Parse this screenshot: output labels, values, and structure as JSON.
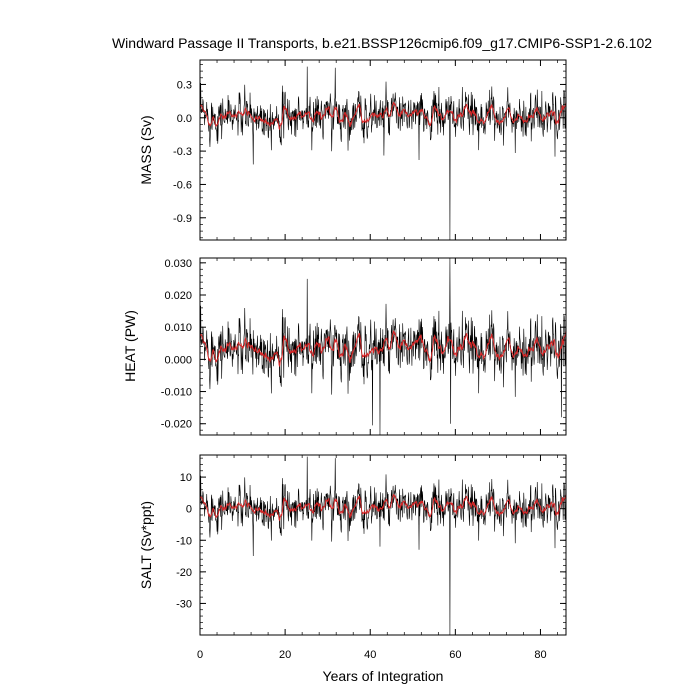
{
  "chart_data": {
    "type": "line",
    "title": "Windward Passage II Transports, b.e21.BSSP126cmip6.f09_g17.CMIP6-SSP1-2.6.102",
    "xlabel": "Years of Integration",
    "xlim": [
      0,
      86
    ],
    "xticks": [
      0,
      20,
      40,
      60,
      80
    ],
    "grid": false,
    "colors": {
      "raw": "#000000",
      "smooth": "#d62728"
    },
    "panels": [
      {
        "name": "mass",
        "ylabel": "MASS (Sv)",
        "ylim": [
          -1.1,
          0.52
        ],
        "yticks": [
          0.3,
          0.0,
          -0.3,
          -0.6,
          -0.9
        ],
        "ytick_labels": [
          "0.3",
          "0.0",
          "-0.3",
          "-0.6",
          "-0.9"
        ],
        "noise_mean": 0.02,
        "noise_sd": 0.1,
        "spikes": [
          [
            25.2,
            0.46
          ],
          [
            31.8,
            0.45
          ],
          [
            12.5,
            -0.42
          ],
          [
            43.2,
            -0.34
          ],
          [
            51.5,
            -0.38
          ],
          [
            58.7,
            -1.1
          ],
          [
            83.4,
            -0.35
          ]
        ]
      },
      {
        "name": "heat",
        "ylabel": "HEAT (PW)",
        "ylim": [
          -0.0235,
          0.0315
        ],
        "yticks": [
          0.03,
          0.02,
          0.01,
          0.0,
          -0.01,
          -0.02
        ],
        "ytick_labels": [
          "0.030",
          "0.020",
          "0.010",
          "0.000",
          "-0.010",
          "-0.020"
        ],
        "noise_mean": 0.0035,
        "noise_sd": 0.0045,
        "spikes": [
          [
            25.2,
            0.025
          ],
          [
            40.5,
            -0.0205
          ],
          [
            42.3,
            -0.0235
          ],
          [
            58.7,
            0.0315
          ],
          [
            58.9,
            -0.02
          ],
          [
            84.9,
            -0.018
          ]
        ]
      },
      {
        "name": "salt",
        "ylabel": "SALT (Sv*ppt)",
        "ylim": [
          -40,
          17
        ],
        "yticks": [
          10,
          0,
          -10,
          -20,
          -30
        ],
        "ytick_labels": [
          "10",
          "0",
          "-10",
          "-20",
          "-30"
        ],
        "noise_mean": 0.5,
        "noise_sd": 3.4,
        "spikes": [
          [
            25.2,
            16.5
          ],
          [
            31.8,
            16
          ],
          [
            12.5,
            -15
          ],
          [
            42.3,
            -12
          ],
          [
            51.5,
            -13
          ],
          [
            58.7,
            -40
          ],
          [
            83.4,
            -12.5
          ]
        ]
      }
    ]
  }
}
